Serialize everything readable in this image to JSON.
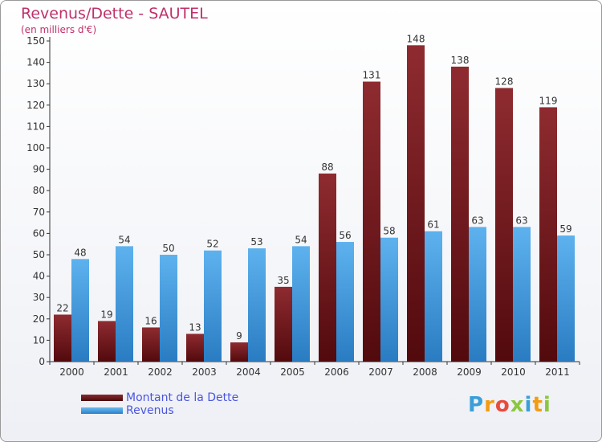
{
  "chart_data": {
    "type": "bar",
    "title": "Revenus/Dette - SAUTEL",
    "subtitle": "(en milliers d'€)",
    "categories": [
      "2000",
      "2001",
      "2002",
      "2003",
      "2004",
      "2005",
      "2006",
      "2007",
      "2008",
      "2009",
      "2010",
      "2011"
    ],
    "series": [
      {
        "name": "Montant de la Dette",
        "color": "#7a1c20",
        "values": [
          22,
          19,
          16,
          13,
          9,
          35,
          88,
          131,
          148,
          138,
          128,
          119
        ]
      },
      {
        "name": "Revenus",
        "color": "#4aa3e6",
        "values": [
          48,
          54,
          50,
          52,
          53,
          54,
          56,
          58,
          61,
          63,
          63,
          59
        ]
      }
    ],
    "ylim": [
      0,
      150
    ],
    "yticks": [
      0,
      10,
      20,
      30,
      40,
      50,
      60,
      70,
      80,
      90,
      100,
      110,
      120,
      130,
      140,
      150
    ],
    "grid": false,
    "legend_position": "bottom-left"
  },
  "logo": {
    "letters": [
      "P",
      "r",
      "o",
      "x",
      "i",
      "t",
      "i"
    ]
  }
}
